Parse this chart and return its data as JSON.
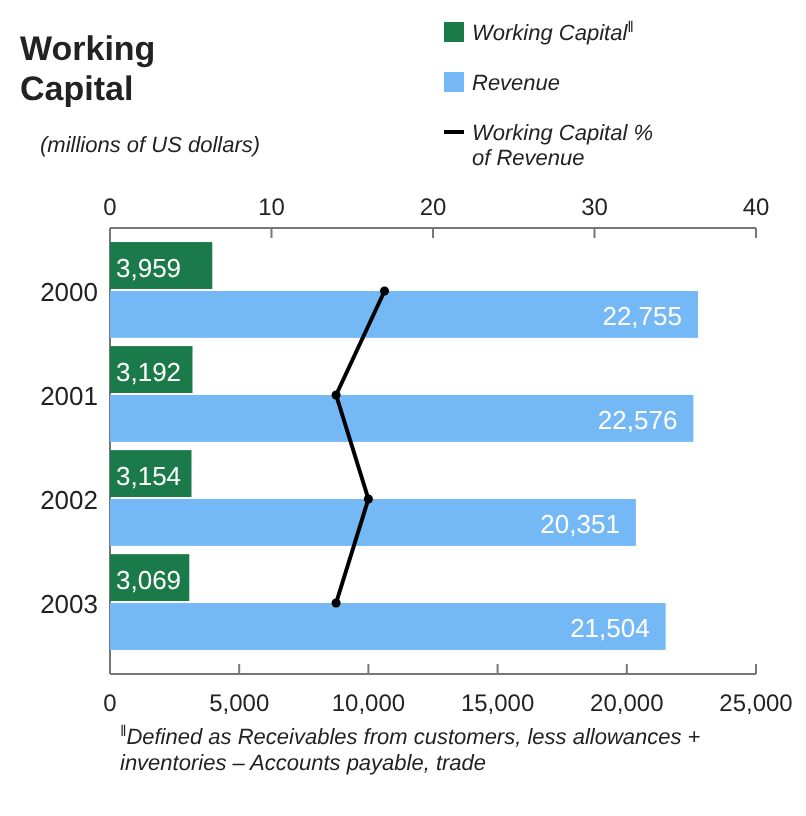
{
  "chart_data": {
    "type": "bar",
    "orientation": "horizontal",
    "title": "Working Capital",
    "subtitle": "(millions of US dollars)",
    "categories": [
      "2000",
      "2001",
      "2002",
      "2003"
    ],
    "series": [
      {
        "name": "Working Capital$^{‖}$",
        "color": "#1a7a4a",
        "values": [
          3959,
          3192,
          3154,
          3069
        ],
        "value_labels": [
          "3,959",
          "3,192",
          "3,154",
          "3,069"
        ]
      },
      {
        "name": "Revenue",
        "color": "#74b9f5",
        "values": [
          22755,
          22576,
          20351,
          21504
        ],
        "value_labels": [
          "22,755",
          "22,576",
          "20,351",
          "21,504"
        ]
      },
      {
        "name": "Working Capital % of Revenue",
        "type": "line",
        "axis": "x2",
        "color": "#000000",
        "values": [
          17,
          14,
          16,
          14
        ],
        "marker": "circle"
      }
    ],
    "xlim": [
      0,
      25000
    ],
    "xticks": [
      {
        "value": 0,
        "label": "0"
      },
      {
        "value": 5000,
        "label": "5,000"
      },
      {
        "value": 10000,
        "label": "10,000"
      },
      {
        "value": 15000,
        "label": "15,000"
      },
      {
        "value": 20000,
        "label": "20,000"
      },
      {
        "value": 25000,
        "label": "25,000"
      }
    ],
    "x2lim": [
      0,
      40
    ],
    "x2ticks": [
      0,
      10,
      20,
      30,
      40
    ],
    "legend": "top right",
    "grid": false,
    "annotations": [
      "$^{‖}$Defined as Receivables from customers, less allowances + inventories – Accounts payable, trade"
    ]
  }
}
